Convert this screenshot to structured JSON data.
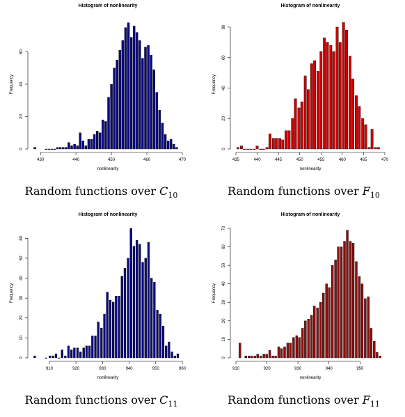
{
  "chart_data": [
    {
      "type": "bar",
      "title": "Histogram of nonlinearity",
      "xlabel": "nonlinearity",
      "ylabel": "Frequency",
      "xlim": [
        428,
        470
      ],
      "ylim": [
        0,
        80
      ],
      "xticks": [
        430,
        440,
        450,
        460,
        470
      ],
      "yticks": [
        0,
        20,
        40,
        60
      ],
      "color": "#0a0a80",
      "bin_width": 0.8,
      "x": [
        428.4,
        431.6,
        432.4,
        433.2,
        434.0,
        434.8,
        435.6,
        436.4,
        437.2,
        438.0,
        438.8,
        439.6,
        440.4,
        441.2,
        442.0,
        442.8,
        443.6,
        444.4,
        445.2,
        446.0,
        446.8,
        447.6,
        448.4,
        449.2,
        450.0,
        450.8,
        451.6,
        452.4,
        453.2,
        454.0,
        454.8,
        455.6,
        456.4,
        457.2,
        458.0,
        458.8,
        459.6,
        460.4,
        461.2,
        462.0,
        462.8,
        463.6,
        464.4,
        465.2,
        466.0,
        466.8,
        467.6,
        468.4
      ],
      "values": [
        1,
        0,
        0,
        0,
        0,
        1,
        1,
        1,
        1,
        4,
        2,
        3,
        2,
        10,
        5,
        2,
        6,
        6,
        9,
        11,
        10,
        18,
        17,
        32,
        40,
        50,
        55,
        61,
        67,
        75,
        78,
        69,
        76,
        72,
        67,
        56,
        63,
        64,
        58,
        49,
        35,
        24,
        16,
        9,
        5,
        6,
        3,
        1
      ],
      "caption": {
        "prefix": "Random functions over ",
        "symbol": "C",
        "subscript": "10"
      }
    },
    {
      "type": "bar",
      "title": "Histogram of nonlinearity",
      "xlabel": "nonlinearity",
      "ylabel": "Frequency",
      "xlim": [
        435,
        470
      ],
      "ylim": [
        0,
        85
      ],
      "xticks": [
        435,
        440,
        445,
        450,
        455,
        460,
        465,
        470
      ],
      "yticks": [
        0,
        20,
        40,
        60,
        80
      ],
      "color": "#cc0000",
      "bin_width": 0.75,
      "x": [
        435.5,
        436.3,
        437.0,
        437.8,
        438.5,
        439.3,
        440.0,
        440.8,
        441.5,
        442.3,
        443.0,
        443.8,
        444.5,
        445.3,
        446.0,
        446.8,
        447.5,
        448.3,
        449.0,
        449.8,
        450.5,
        451.3,
        452.0,
        452.8,
        453.5,
        454.3,
        455.0,
        455.8,
        456.5,
        457.3,
        458.0,
        458.8,
        459.5,
        460.3,
        461.0,
        461.8,
        462.5,
        463.3,
        464.0,
        464.8,
        465.5,
        466.3,
        467.0,
        467.8,
        468.5
      ],
      "values": [
        1,
        2,
        0,
        0,
        0,
        0,
        2,
        0,
        0,
        1,
        10,
        7,
        7,
        7,
        6,
        12,
        12,
        20,
        33,
        27,
        31,
        48,
        39,
        56,
        58,
        51,
        64,
        73,
        70,
        68,
        64,
        80,
        70,
        83,
        78,
        61,
        46,
        35,
        28,
        20,
        16,
        1,
        13,
        1,
        1
      ],
      "caption": {
        "prefix": "Random functions over ",
        "symbol": "F",
        "subscript": "10"
      }
    },
    {
      "type": "bar",
      "title": "Histogram of nonlinearity",
      "xlabel": "nonlinearity",
      "ylabel": "Frequency",
      "xlim": [
        904,
        960
      ],
      "ylim": [
        0,
        65
      ],
      "xticks": [
        910,
        920,
        930,
        940,
        950,
        960
      ],
      "yticks": [
        0,
        10,
        20,
        30,
        40,
        50,
        60
      ],
      "color": "#0a0a80",
      "bin_width": 1.0,
      "x": [
        904.5,
        908.8,
        910.2,
        911.4,
        912.5,
        913.6,
        914.8,
        916.0,
        917.2,
        918.3,
        919.4,
        920.6,
        921.7,
        922.9,
        924.0,
        925.1,
        926.2,
        927.3,
        928.4,
        929.6,
        930.7,
        931.8,
        932.9,
        934.0,
        935.1,
        936.2,
        937.3,
        938.4,
        939.6,
        940.7,
        941.8,
        942.9,
        944.0,
        945.1,
        946.2,
        947.3,
        948.4,
        949.5,
        950.6,
        951.7,
        952.8,
        953.9,
        955.0,
        956.1,
        957.2,
        958.3
      ],
      "values": [
        1,
        0,
        1,
        1,
        2,
        0,
        4,
        1,
        6,
        4,
        5,
        5,
        3,
        5,
        6,
        6,
        11,
        11,
        18,
        15,
        22,
        33,
        29,
        28,
        31,
        31,
        41,
        45,
        50,
        65,
        56,
        59,
        57,
        48,
        50,
        58,
        40,
        38,
        24,
        22,
        16,
        6,
        8,
        3,
        1,
        2
      ],
      "caption": {
        "prefix": "Random functions over ",
        "symbol": "C",
        "subscript": "11"
      }
    },
    {
      "type": "bar",
      "title": "Histogram of nonlinearity",
      "xlabel": "nonlinearity",
      "ylabel": "Frequency",
      "xlim": [
        910,
        958
      ],
      "ylim": [
        0,
        70
      ],
      "xticks": [
        910,
        920,
        930,
        940,
        950
      ],
      "yticks": [
        0,
        10,
        20,
        30,
        40,
        50,
        60,
        70
      ],
      "color": "#8b1010",
      "bin_width": 0.9,
      "x": [
        911.3,
        913.2,
        914.2,
        915.1,
        916.1,
        917.0,
        918.0,
        919.0,
        919.9,
        920.9,
        921.9,
        922.8,
        923.8,
        924.7,
        925.7,
        926.7,
        927.6,
        928.6,
        929.6,
        930.5,
        931.5,
        932.4,
        933.4,
        934.4,
        935.3,
        936.3,
        937.3,
        938.2,
        939.2,
        940.1,
        941.1,
        942.1,
        943.0,
        944.0,
        945.0,
        945.9,
        946.9,
        947.8,
        948.8,
        949.8,
        950.7,
        951.7,
        952.7,
        953.6,
        954.6,
        955.5,
        956.5
      ],
      "values": [
        8,
        1,
        1,
        1,
        1,
        2,
        1,
        2,
        2,
        4,
        1,
        1,
        6,
        5,
        6,
        8,
        8,
        11,
        12,
        11,
        16,
        20,
        21,
        23,
        28,
        27,
        30,
        35,
        40,
        38,
        50,
        53,
        60,
        60,
        63,
        69,
        63,
        62,
        52,
        44,
        40,
        32,
        33,
        16,
        9,
        3,
        1
      ],
      "caption": {
        "prefix": "Random functions over ",
        "symbol": "F",
        "subscript": "11"
      }
    }
  ]
}
